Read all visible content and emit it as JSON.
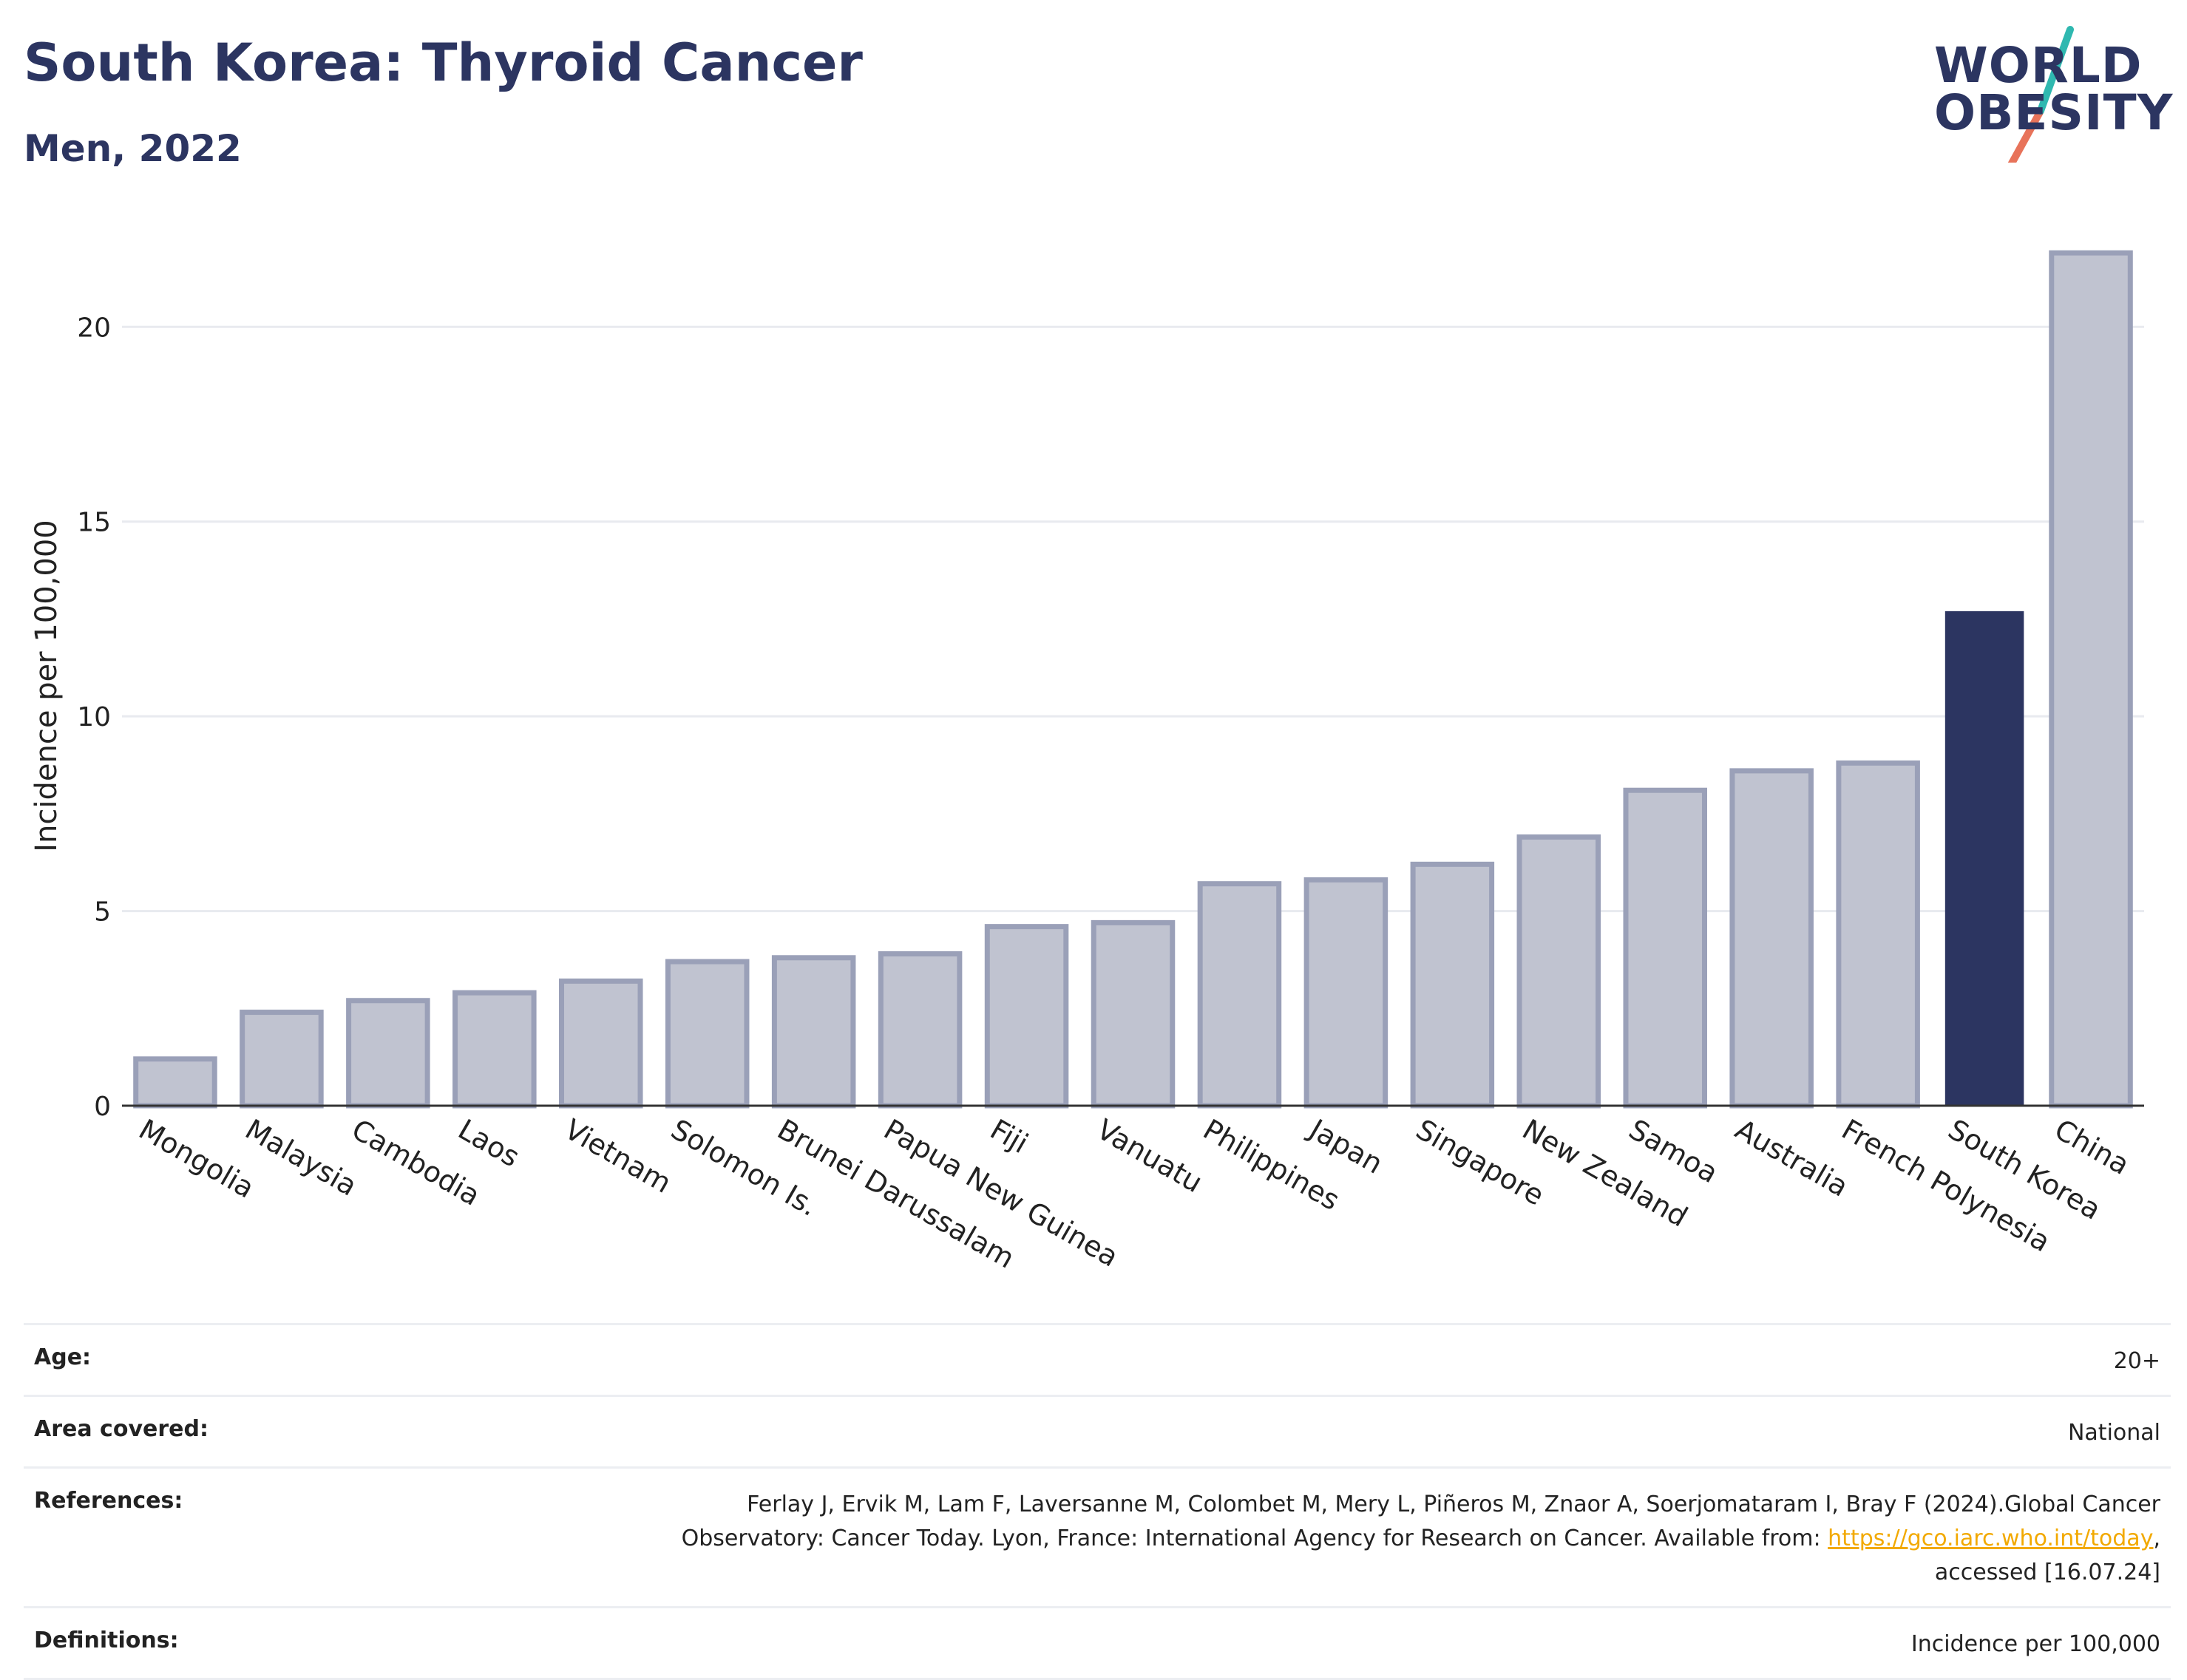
{
  "title": "South Korea: Thyroid Cancer",
  "subtitle": "Men, 2022",
  "logo": {
    "line1": "WORLD",
    "line2": "OBESITY"
  },
  "colors": {
    "accent": "#2c3561",
    "bar_default": "#c0c3d0",
    "bar_border": "#9aa0b8",
    "highlight": "#2c3561",
    "link": "#f2a900"
  },
  "chart_data": {
    "type": "bar",
    "ylabel": "Incidence per 100,000",
    "xlabel": "",
    "ylim": [
      0,
      22.7
    ],
    "yticks": [
      0,
      5,
      10,
      15,
      20
    ],
    "grid": true,
    "categories": [
      "Mongolia",
      "Malaysia",
      "Cambodia",
      "Laos",
      "Vietnam",
      "Solomon Is.",
      "Brunei Darussalam",
      "Papua New Guinea",
      "Fiji",
      "Vanuatu",
      "Philippines",
      "Japan",
      "Singapore",
      "New Zealand",
      "Samoa",
      "Australia",
      "French Polynesia",
      "South Korea",
      "China"
    ],
    "values": [
      1.2,
      2.4,
      2.7,
      2.9,
      3.2,
      3.7,
      3.8,
      3.9,
      4.6,
      4.7,
      5.7,
      5.8,
      6.2,
      6.9,
      8.1,
      8.6,
      8.8,
      12.7,
      21.9
    ],
    "highlight": "South Korea"
  },
  "meta": {
    "age_label": "Age:",
    "age_value": "20+",
    "area_label": "Area covered:",
    "area_value": "National",
    "references_label": "References:",
    "references_line1": "Ferlay J, Ervik M, Lam F, Laversanne M, Colombet M, Mery L, Piñeros M, Znaor A, Soerjomataram I, Bray F (2024).Global Cancer",
    "references_line2_prefix": "Observatory: Cancer Today. Lyon, France: International Agency for Research on Cancer. Available from: ",
    "references_link": "https://gco.iarc.who.int/today",
    "references_line2_suffix": ",",
    "references_line3": "accessed [16.07.24]",
    "definitions_label": "Definitions:",
    "definitions_value": "Incidence per 100,000"
  }
}
